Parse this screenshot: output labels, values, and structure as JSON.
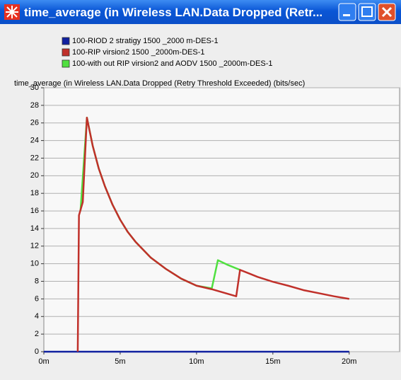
{
  "window": {
    "title": "time_average (in Wireless LAN.Data Dropped (Retr..."
  },
  "chart_data": {
    "type": "line",
    "ylabel": "time_average (in Wireless LAN.Data Dropped (Retry Threshold Exceeded) (bits/sec)",
    "xlim": [
      0,
      23.3
    ],
    "xticks": [
      {
        "value": 0,
        "label": "0m"
      },
      {
        "value": 5,
        "label": "5m"
      },
      {
        "value": 10,
        "label": "10m"
      },
      {
        "value": 15,
        "label": "15m"
      },
      {
        "value": 20,
        "label": "20m"
      }
    ],
    "ylim": [
      0,
      30
    ],
    "yticks": [
      0,
      2,
      4,
      6,
      8,
      10,
      12,
      14,
      16,
      18,
      20,
      22,
      24,
      26,
      28,
      30
    ],
    "grid": "y",
    "series": [
      {
        "name": "100-RIOD 2 stratigy 1500 _2000 m-DES-1",
        "color": "#1020a0",
        "x": [
          0,
          20
        ],
        "values": [
          0,
          0
        ]
      },
      {
        "name": "100-RIP  virsion2  1500  _2000m-DES-1",
        "color": "#c0302a",
        "x": [
          2.22,
          2.3,
          2.55,
          2.82,
          3.2,
          3.6,
          4,
          4.5,
          5,
          5.5,
          6,
          7,
          8,
          9,
          10,
          11,
          12,
          12.6,
          12.85,
          13.5,
          14,
          15,
          16,
          17,
          18,
          19,
          20
        ],
        "values": [
          0,
          15.5,
          17,
          26.6,
          23.4,
          20.8,
          18.8,
          16.7,
          15.0,
          13.6,
          12.5,
          10.7,
          9.4,
          8.3,
          7.5,
          7.1,
          6.6,
          6.3,
          9.3,
          8.85,
          8.5,
          7.95,
          7.5,
          7.0,
          6.65,
          6.3,
          6.0
        ]
      },
      {
        "name": "100-with out  RIP  virsion2 and  AODV 1500 _2000m-DES-1",
        "color": "#50e040",
        "x": [
          2.4,
          2.82,
          3.2,
          3.6,
          4,
          4.5,
          5,
          5.5,
          6,
          7,
          8,
          9,
          10,
          11,
          11.4,
          12,
          12.85
        ],
        "values": [
          16,
          26.6,
          23.4,
          20.8,
          18.8,
          16.7,
          15.0,
          13.6,
          12.5,
          10.7,
          9.4,
          8.3,
          7.5,
          7.2,
          10.4,
          9.9,
          9.3
        ]
      }
    ]
  }
}
